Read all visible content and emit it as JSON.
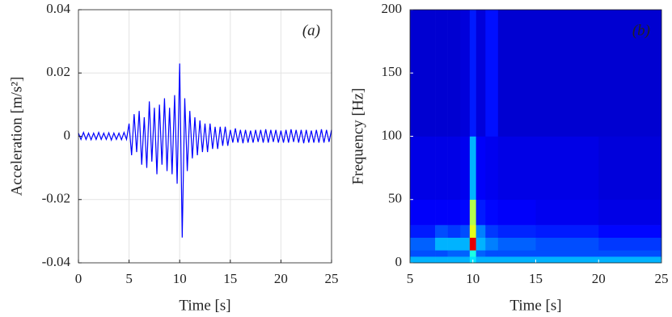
{
  "chart_data": [
    {
      "type": "line",
      "label": "(a)",
      "xlabel": "Time [s]",
      "ylabel": "Acceleration [m/s²]",
      "xlim": [
        0,
        25
      ],
      "ylim": [
        -0.04,
        0.04
      ],
      "xticks": [
        0,
        5,
        10,
        15,
        20,
        25
      ],
      "yticks": [
        -0.04,
        -0.02,
        0,
        0.02,
        0.04
      ],
      "grid": true,
      "x": [
        0,
        0.25,
        0.5,
        0.75,
        1,
        1.25,
        1.5,
        1.75,
        2,
        2.25,
        2.5,
        2.75,
        3,
        3.25,
        3.5,
        3.75,
        4,
        4.25,
        4.5,
        4.75,
        5,
        5.25,
        5.5,
        5.75,
        6,
        6.25,
        6.5,
        6.75,
        7,
        7.25,
        7.5,
        7.75,
        8,
        8.25,
        8.5,
        8.75,
        9,
        9.25,
        9.5,
        9.75,
        10,
        10.25,
        10.5,
        10.75,
        11,
        11.25,
        11.5,
        11.75,
        12,
        12.25,
        12.5,
        12.75,
        13,
        13.25,
        13.5,
        13.75,
        14,
        14.25,
        14.5,
        14.75,
        15,
        15.25,
        15.5,
        15.75,
        16,
        16.25,
        16.5,
        16.75,
        17,
        17.25,
        17.5,
        17.75,
        18,
        18.25,
        18.5,
        18.75,
        19,
        19.25,
        19.5,
        19.75,
        20,
        20.25,
        20.5,
        20.75,
        21,
        21.25,
        21.5,
        21.75,
        22,
        22.25,
        22.5,
        22.75,
        23,
        23.25,
        23.5,
        23.75,
        24,
        24.25,
        24.5,
        24.75,
        25
      ],
      "series": [
        {
          "color": "#0000ff",
          "values": [
            0.001,
            -0.001,
            0.0012,
            -0.001,
            0.001,
            -0.0011,
            0.001,
            -0.001,
            0.0012,
            -0.001,
            0.001,
            -0.001,
            0.0011,
            -0.0012,
            0.001,
            -0.001,
            0.001,
            -0.0011,
            0.0012,
            -0.001,
            0.004,
            -0.006,
            0.007,
            -0.005,
            0.008,
            -0.009,
            0.006,
            -0.01,
            0.011,
            -0.008,
            0.009,
            -0.012,
            0.01,
            -0.009,
            0.012,
            -0.011,
            0.009,
            -0.012,
            0.013,
            -0.015,
            0.023,
            -0.032,
            0.012,
            -0.011,
            0.008,
            -0.007,
            0.006,
            -0.006,
            0.005,
            -0.005,
            0.004,
            -0.005,
            0.004,
            -0.004,
            0.003,
            -0.004,
            0.003,
            -0.003,
            0.003,
            -0.003,
            0.002,
            -0.002,
            0.0025,
            -0.002,
            0.002,
            -0.0022,
            0.002,
            -0.002,
            0.0018,
            -0.002,
            0.002,
            -0.0018,
            0.002,
            -0.002,
            0.0022,
            -0.002,
            0.002,
            -0.0018,
            0.002,
            -0.002,
            0.0018,
            -0.002,
            0.002,
            -0.002,
            0.0022,
            -0.0018,
            0.002,
            -0.002,
            0.002,
            -0.0022,
            0.002,
            -0.002,
            0.0018,
            -0.002,
            0.002,
            -0.002,
            0.0022,
            -0.002,
            0.002,
            -0.0018,
            0.002
          ]
        }
      ]
    },
    {
      "type": "heatmap",
      "label": "(b)",
      "xlabel": "Time [s]",
      "ylabel": "Frequency [Hz]",
      "xlim": [
        5,
        25
      ],
      "ylim": [
        0,
        200
      ],
      "xticks": [
        5,
        10,
        15,
        20,
        25
      ],
      "yticks": [
        0,
        50,
        100,
        150,
        200
      ],
      "xedges": [
        5,
        7,
        8,
        9,
        9.75,
        10.25,
        11,
        12,
        15,
        20,
        25
      ],
      "yedges": [
        0,
        5,
        10,
        20,
        30,
        50,
        100,
        200
      ],
      "z": [
        [
          0.3,
          0.3,
          0.3,
          0.3,
          0.35,
          0.3,
          0.3,
          0.3,
          0.3,
          0.3
        ],
        [
          0.2,
          0.2,
          0.22,
          0.22,
          0.4,
          0.22,
          0.2,
          0.2,
          0.2,
          0.2
        ],
        [
          0.22,
          0.3,
          0.3,
          0.3,
          0.9,
          0.3,
          0.25,
          0.22,
          0.2,
          0.18
        ],
        [
          0.15,
          0.2,
          0.18,
          0.2,
          0.6,
          0.25,
          0.18,
          0.16,
          0.15,
          0.13
        ],
        [
          0.12,
          0.12,
          0.12,
          0.13,
          0.55,
          0.15,
          0.13,
          0.12,
          0.11,
          0.1
        ],
        [
          0.1,
          0.1,
          0.1,
          0.11,
          0.3,
          0.12,
          0.11,
          0.1,
          0.1,
          0.09
        ],
        [
          0.08,
          0.08,
          0.08,
          0.09,
          0.15,
          0.09,
          0.14,
          0.08,
          0.08,
          0.08
        ]
      ]
    }
  ]
}
